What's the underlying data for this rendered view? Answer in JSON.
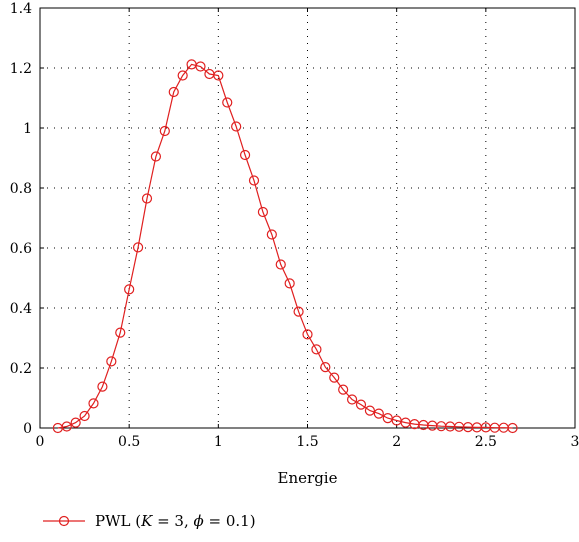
{
  "chart_data": {
    "type": "line",
    "xlabel": "Energie",
    "ylabel": "",
    "xlim": [
      0,
      3
    ],
    "ylim": [
      0,
      1.4
    ],
    "xticks": [
      "0",
      "0.5",
      "1",
      "1.5",
      "2",
      "2.5",
      "3"
    ],
    "yticks": [
      "0",
      "0.2",
      "0.4",
      "0.6",
      "0.8",
      "1",
      "1.2",
      "1.4"
    ],
    "grid": true,
    "legend_position": "bottom-left",
    "series": [
      {
        "name": "PWL (K = 3, ϕ = 0.1)",
        "legend_parts": [
          "PWL (",
          "K",
          " = 3, ",
          "ϕ",
          " = 0.1)"
        ],
        "color": "#e02020",
        "marker": "open-circle",
        "x": [
          0.1,
          0.15,
          0.2,
          0.25,
          0.3,
          0.35,
          0.4,
          0.45,
          0.5,
          0.55,
          0.6,
          0.65,
          0.7,
          0.75,
          0.8,
          0.85,
          0.9,
          0.95,
          1.0,
          1.05,
          1.1,
          1.15,
          1.2,
          1.25,
          1.3,
          1.35,
          1.4,
          1.45,
          1.5,
          1.55,
          1.6,
          1.65,
          1.7,
          1.75,
          1.8,
          1.85,
          1.9,
          1.95,
          2.0,
          2.05,
          2.1,
          2.15,
          2.2,
          2.25,
          2.3,
          2.35,
          2.4,
          2.45,
          2.5,
          2.55,
          2.6,
          2.65
        ],
        "y": [
          0.0,
          0.005,
          0.018,
          0.04,
          0.082,
          0.138,
          0.222,
          0.318,
          0.462,
          0.602,
          0.765,
          0.905,
          0.99,
          1.12,
          1.175,
          1.212,
          1.205,
          1.18,
          1.175,
          1.085,
          1.005,
          0.91,
          0.825,
          0.72,
          0.645,
          0.545,
          0.482,
          0.388,
          0.312,
          0.262,
          0.203,
          0.168,
          0.128,
          0.095,
          0.078,
          0.058,
          0.048,
          0.033,
          0.025,
          0.018,
          0.013,
          0.01,
          0.008,
          0.006,
          0.005,
          0.004,
          0.003,
          0.002,
          0.002,
          0.001,
          0.001,
          0.0
        ]
      }
    ]
  }
}
